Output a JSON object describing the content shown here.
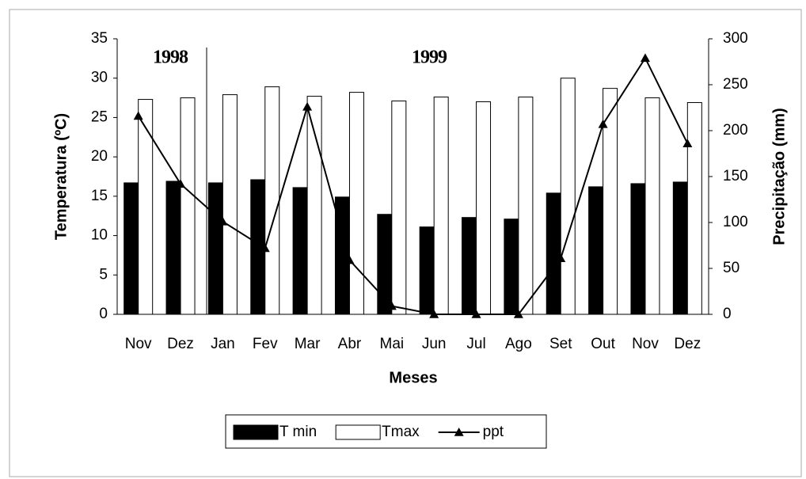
{
  "chart_data": {
    "type": "bar",
    "xlabel": "Meses",
    "ylabel": "Temperatura (ºC)",
    "y2label": "Precipitação (mm)",
    "annotations": [
      "1998",
      "1999"
    ],
    "categories": [
      "Nov",
      "Dez",
      "Jan",
      "Fev",
      "Mar",
      "Abr",
      "Mai",
      "Jun",
      "Jul",
      "Ago",
      "Set",
      "Out",
      "Nov",
      "Dez"
    ],
    "series": [
      {
        "name": "T min",
        "type": "bar",
        "color": "#000000",
        "values": [
          16.7,
          16.9,
          16.7,
          17.1,
          16.1,
          14.9,
          12.7,
          11.1,
          12.3,
          12.1,
          15.4,
          16.2,
          16.6,
          16.8
        ]
      },
      {
        "name": "Tmax",
        "type": "bar",
        "color": "#ffffff",
        "values": [
          27.3,
          27.5,
          27.9,
          28.9,
          27.7,
          28.2,
          27.1,
          27.6,
          27.0,
          27.6,
          30.0,
          28.7,
          27.5,
          26.9
        ]
      },
      {
        "name": "ppt",
        "type": "line",
        "axis": "y2",
        "color": "#000000",
        "values": [
          216,
          142,
          101,
          72,
          226,
          59,
          9,
          0,
          0,
          0,
          61,
          207,
          279,
          186
        ]
      }
    ],
    "ylim": [
      0,
      35
    ],
    "yticks": [
      0,
      5,
      10,
      15,
      20,
      25,
      30,
      35
    ],
    "y2lim": [
      0,
      300
    ],
    "y2ticks": [
      0,
      50,
      100,
      150,
      200,
      250,
      300
    ],
    "grid": false,
    "legend": "bottom"
  }
}
